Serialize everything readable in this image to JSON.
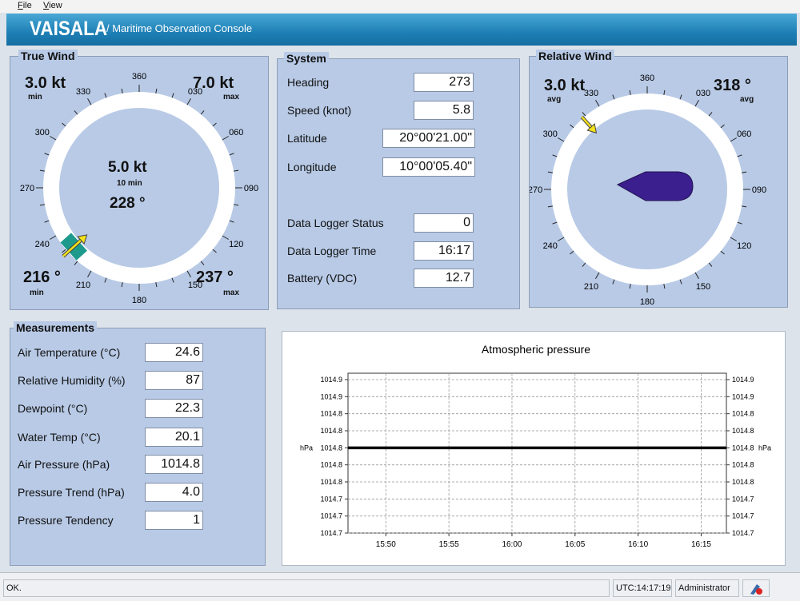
{
  "menu": {
    "file": "File",
    "view": "View"
  },
  "header": {
    "logo": "VAISALA",
    "title": "/ Maritime Observation Console"
  },
  "true_wind": {
    "title": "True Wind",
    "min_speed": "3.0 kt",
    "min_speed_label": "min",
    "max_speed": "7.0 kt",
    "max_speed_label": "max",
    "avg_speed": "5.0 kt",
    "avg_speed_label": "10 min",
    "avg_dir": "228 °",
    "min_dir": "216 °",
    "min_dir_label": "min",
    "max_dir": "237 °",
    "max_dir_label": "max",
    "compass_labels": [
      "360",
      "030",
      "060",
      "090",
      "120",
      "150",
      "180",
      "210",
      "240",
      "270",
      "300",
      "330"
    ],
    "arrow_direction_deg": 228
  },
  "system": {
    "title": "System",
    "rows": [
      {
        "label": "Heading",
        "value": "273"
      },
      {
        "label": "Speed (knot)",
        "value": "5.8"
      },
      {
        "label": "Latitude",
        "value": "20°00'21.00\""
      },
      {
        "label": "Longitude",
        "value": "10°00'05.40\""
      },
      {
        "label": "Data Logger Status",
        "value": "0"
      },
      {
        "label": "Data Logger Time",
        "value": "16:17"
      },
      {
        "label": "Battery (VDC)",
        "value": "12.7"
      }
    ]
  },
  "relative_wind": {
    "title": "Relative Wind",
    "avg_speed": "3.0 kt",
    "avg_speed_label": "avg",
    "avg_dir": "318 °",
    "avg_dir_label": "avg",
    "compass_labels": [
      "360",
      "030",
      "060",
      "090",
      "120",
      "150",
      "180",
      "210",
      "240",
      "270",
      "300",
      "330"
    ],
    "arrow_direction_deg": 318
  },
  "measurements": {
    "title": "Measurements",
    "rows": [
      {
        "label": "Air Temperature (°C)",
        "value": "24.6"
      },
      {
        "label": "Relative Humidity (%)",
        "value": "87"
      },
      {
        "label": "Dewpoint (°C)",
        "value": "22.3"
      },
      {
        "label": "Water Temp (°C)",
        "value": "20.1"
      },
      {
        "label": "Air Pressure (hPa)",
        "value": "1014.8"
      },
      {
        "label": "Pressure Trend (hPa)",
        "value": "4.0"
      },
      {
        "label": "Pressure Tendency",
        "value": "1"
      }
    ]
  },
  "chart_data": {
    "type": "line",
    "title": "Atmospheric pressure",
    "ylabel": "hPa",
    "y_ticks": [
      "1014.9",
      "1014.9",
      "1014.8",
      "1014.8",
      "1014.8",
      "1014.8",
      "1014.8",
      "1014.7",
      "1014.7",
      "1014.7"
    ],
    "x_ticks": [
      "15:50",
      "15:55",
      "16:00",
      "16:05",
      "16:10",
      "16:15"
    ],
    "x_range": [
      "15:47",
      "16:17"
    ],
    "series": [
      {
        "x": [
          "15:47",
          "16:17"
        ],
        "values": [
          1014.8,
          1014.8
        ]
      }
    ],
    "ylim": [
      1014.7,
      1014.9
    ],
    "grid": true
  },
  "status": {
    "message": "OK.",
    "utc": "UTC:14:17:19",
    "user": "Administrator"
  }
}
